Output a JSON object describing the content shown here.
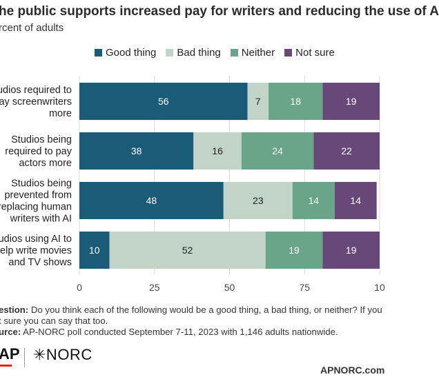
{
  "title": "he public supports increased pay for writers and reducing the use of A",
  "subtitle": "rcent of adults",
  "footer": {
    "question_label": "estion:",
    "question_text": " Do you think each of the following would be a good thing, a bad thing, or neither? If you",
    "question_text_2": "t sure you can say that too.",
    "source_label": "urce:",
    "source_text": " AP-NORC poll conducted September 7-11, 2023 with 1,146 adults nationwide."
  },
  "logos": {
    "ap": "AP",
    "norc": "✳NORC"
  },
  "site": "APNORC.com",
  "colors": {
    "good": "#1a5b78",
    "bad": "#c2d3c8",
    "neither": "#6aa589",
    "not_sure": "#684878"
  },
  "chart_data": {
    "type": "bar",
    "orientation": "horizontal",
    "stacked": true,
    "legend_position": "top",
    "grid": true,
    "xlim": [
      0,
      100
    ],
    "xticks": [
      "0",
      "25",
      "50",
      "75",
      "10"
    ],
    "categories": [
      [
        "tudios required to",
        "ay screenwriters",
        "more"
      ],
      [
        "Studios being",
        "required to pay",
        "actors more"
      ],
      [
        "Studios being",
        "prevented from",
        "replacing human",
        "writers with AI"
      ],
      [
        "tudios using AI to",
        "elp write movies",
        "and TV shows"
      ]
    ],
    "series": [
      {
        "name": "Good thing",
        "values": [
          56,
          38,
          48,
          10
        ],
        "labels": [
          "56",
          "38",
          "48",
          "10"
        ]
      },
      {
        "name": "Bad thing",
        "values": [
          7,
          16,
          23,
          52
        ],
        "labels": [
          "7",
          "16",
          "23",
          "52"
        ]
      },
      {
        "name": "Neither",
        "values": [
          18,
          24,
          14,
          19
        ],
        "labels": [
          "18",
          "24",
          "14",
          "19"
        ]
      },
      {
        "name": "Not sure",
        "values": [
          19,
          22,
          14,
          19
        ],
        "labels": [
          "19",
          "22",
          "14",
          "19"
        ]
      }
    ]
  }
}
